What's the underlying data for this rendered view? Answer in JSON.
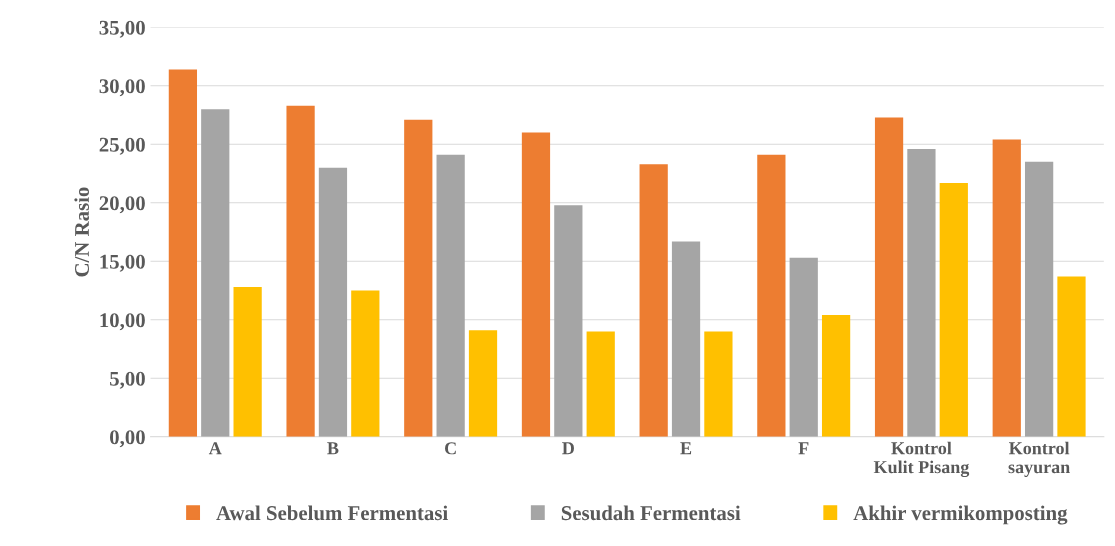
{
  "chart_data": {
    "type": "bar",
    "ylabel": "C/N Rasio",
    "categories": [
      "A",
      "B",
      "C",
      "D",
      "E",
      "F",
      "Kontrol\nKulit Pisang",
      "Kontrol\nsayuran"
    ],
    "series": [
      {
        "name": "Awal Sebelum Fermentasi",
        "color": "#ed7d31",
        "values": [
          31.4,
          28.3,
          27.1,
          26.0,
          23.3,
          24.1,
          27.3,
          25.4
        ]
      },
      {
        "name": "Sesudah Fermentasi",
        "color": "#a5a5a5",
        "values": [
          28.0,
          23.0,
          24.1,
          19.8,
          16.7,
          15.3,
          24.6,
          23.5
        ]
      },
      {
        "name": "Akhir vermikomposting",
        "color": "#ffc000",
        "values": [
          12.8,
          12.5,
          9.1,
          9.0,
          9.0,
          10.4,
          21.7,
          13.7
        ]
      }
    ],
    "ylim": [
      0,
      35
    ],
    "yticks": [
      {
        "value": 0,
        "label": "0,00"
      },
      {
        "value": 5,
        "label": "5,00"
      },
      {
        "value": 10,
        "label": "10,00"
      },
      {
        "value": 15,
        "label": "15,00"
      },
      {
        "value": 20,
        "label": "20,00"
      },
      {
        "value": 25,
        "label": "25,00"
      },
      {
        "value": 30,
        "label": "30,00"
      },
      {
        "value": 35,
        "label": "35,00"
      }
    ],
    "grid": "y",
    "legend": "bottom"
  }
}
